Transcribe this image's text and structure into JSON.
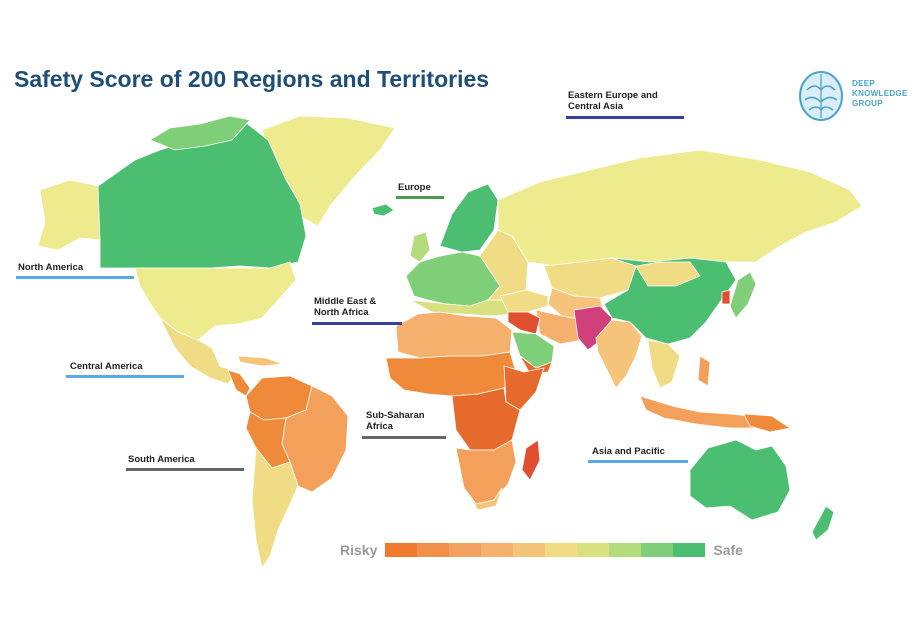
{
  "title": "Safety Score of 200 Regions and Territories",
  "logo": {
    "line1": "DEEP",
    "line2": "KNOWLEDGE",
    "line3": "GROUP",
    "icon": "brain-icon"
  },
  "region_labels": {
    "north_america": "North America",
    "central_america": "Central America",
    "south_america": "South America",
    "europe": "Europe",
    "middle_east_1": "Middle East &",
    "middle_east_2": "North Africa",
    "sub_saharan_1": "Sub-Saharan",
    "sub_saharan_2": "Africa",
    "eastern_europe_1": "Eastern Europe and",
    "eastern_europe_2": "Central Asia",
    "asia_pacific": "Asia and Pacific"
  },
  "underline_colors": {
    "north_america": "#5aa9e6",
    "central_america": "#5aa9e6",
    "south_america": "#666666",
    "europe": "#4c9a4c",
    "middle_east": "#3340a0",
    "sub_saharan": "#666666",
    "eastern_europe": "#3340a0",
    "asia_pacific": "#5aa9e6"
  },
  "legend": {
    "low_label": "Risky",
    "high_label": "Safe",
    "colors": [
      "#f07a2e",
      "#f2904a",
      "#f3a060",
      "#f5b06e",
      "#f5c47a",
      "#f0dc84",
      "#d8e080",
      "#b5dc7c",
      "#7fce78",
      "#4cbe72"
    ]
  },
  "palette": {
    "ocean": "#ffffff",
    "border": "#ffffff",
    "safe": "#4cbe72",
    "safe_light": "#7fce78",
    "light_yellow": "#eeea8e",
    "yellow": "#f0dc84",
    "tan": "#f5c47a",
    "light_orange": "#f2a05a",
    "orange": "#ee8a3a",
    "deep_orange": "#e66a2c",
    "red": "#e05030",
    "magenta": "#d0407a"
  }
}
